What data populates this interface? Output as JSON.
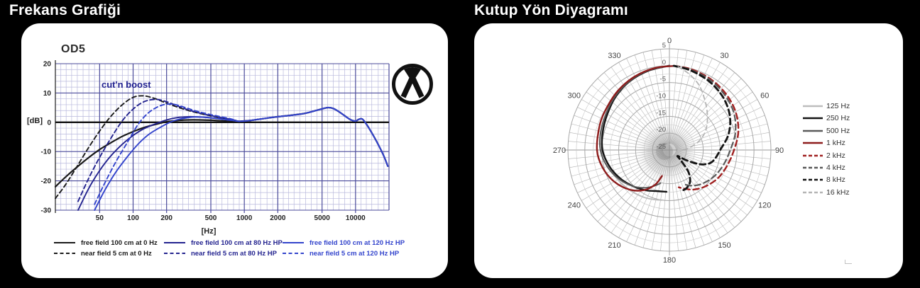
{
  "page": {
    "background": "#000000",
    "title_color": "#ffffff"
  },
  "panels": {
    "left": {
      "title": "Frekans Grafiği"
    },
    "right": {
      "title": "Kutup Yön Diyagramı"
    }
  },
  "icons": {
    "brand_logo": "austrian-audio-logo"
  },
  "chart_data": [
    {
      "type": "line",
      "title": "OD5",
      "annotation": "cut'n boost",
      "xlabel": "[Hz]",
      "ylabel": "[dB]",
      "x_scale": "log",
      "xlim": [
        20,
        20000
      ],
      "ylim": [
        -30,
        20
      ],
      "x_ticks": [
        "50",
        "100",
        "200",
        "500",
        "1000",
        "2000",
        "5000",
        "10000"
      ],
      "y_ticks": [
        "20",
        "10",
        "0",
        "-10",
        "-20",
        "-30"
      ],
      "grid": {
        "minor_color": "#b9b9dd",
        "major_color": "#4a4a9a",
        "zero_line_color": "#111111"
      },
      "legend_columns": [
        [
          0,
          1
        ],
        [
          2,
          3
        ],
        [
          4,
          5
        ]
      ],
      "series": [
        {
          "name": "free field 100 cm at 0 Hz",
          "color": "#1a1a1a",
          "dash": false,
          "width": 2.2,
          "merge_tail": true,
          "points": [
            [
              20,
              -22
            ],
            [
              25,
              -18.5
            ],
            [
              32,
              -15
            ],
            [
              40,
              -12
            ],
            [
              50,
              -9.3
            ],
            [
              63,
              -7
            ],
            [
              80,
              -4.8
            ],
            [
              100,
              -3.2
            ],
            [
              125,
              -1.8
            ],
            [
              160,
              -0.7
            ],
            [
              200,
              0.2
            ],
            [
              250,
              0.6
            ],
            [
              315,
              0.8
            ],
            [
              400,
              0.8
            ],
            [
              500,
              0.7
            ],
            [
              630,
              0.5
            ],
            [
              800,
              0.3
            ]
          ]
        },
        {
          "name": "near field 5 cm at 0 Hz",
          "color": "#1a1a1a",
          "dash": true,
          "width": 1.9,
          "merge_tail": true,
          "points": [
            [
              20,
              -26
            ],
            [
              25,
              -21
            ],
            [
              32,
              -14.5
            ],
            [
              40,
              -8.5
            ],
            [
              50,
              -3
            ],
            [
              63,
              2
            ],
            [
              80,
              6
            ],
            [
              100,
              8.5
            ],
            [
              125,
              9
            ],
            [
              160,
              8
            ],
            [
              200,
              6.5
            ],
            [
              250,
              5.2
            ],
            [
              315,
              4
            ],
            [
              400,
              3
            ],
            [
              500,
              2.2
            ],
            [
              630,
              1.5
            ],
            [
              800,
              0.8
            ]
          ]
        },
        {
          "name": "free field 100 cm at 80 Hz HP",
          "color": "#23238f",
          "dash": false,
          "width": 1.9,
          "merge_tail": true,
          "points": [
            [
              32,
              -30
            ],
            [
              40,
              -22.5
            ],
            [
              50,
              -16.5
            ],
            [
              63,
              -11.5
            ],
            [
              80,
              -7.5
            ],
            [
              100,
              -4.5
            ],
            [
              125,
              -2.2
            ],
            [
              160,
              -0.5
            ],
            [
              200,
              0.8
            ],
            [
              250,
              1.6
            ],
            [
              315,
              1.9
            ],
            [
              400,
              1.8
            ],
            [
              500,
              1.5
            ],
            [
              630,
              1.1
            ],
            [
              800,
              0.6
            ]
          ]
        },
        {
          "name": "near field 5 cm at 80 Hz HP",
          "color": "#23238f",
          "dash": true,
          "width": 1.9,
          "merge_tail": true,
          "points": [
            [
              32,
              -27
            ],
            [
              40,
              -19
            ],
            [
              50,
              -12
            ],
            [
              63,
              -5.5
            ],
            [
              80,
              0.5
            ],
            [
              100,
              4.5
            ],
            [
              125,
              7
            ],
            [
              160,
              7.8
            ],
            [
              200,
              7
            ],
            [
              250,
              5.6
            ],
            [
              315,
              4.2
            ],
            [
              400,
              3.1
            ],
            [
              500,
              2.3
            ],
            [
              630,
              1.5
            ],
            [
              800,
              0.8
            ]
          ]
        },
        {
          "name": "free field 100 cm at 120 Hz HP",
          "color": "#3344cc",
          "dash": false,
          "width": 1.9,
          "merge_tail": true,
          "points": [
            [
              45,
              -30
            ],
            [
              56,
              -23
            ],
            [
              70,
              -17
            ],
            [
              90,
              -11.5
            ],
            [
              112,
              -7.3
            ],
            [
              140,
              -4
            ],
            [
              180,
              -1.5
            ],
            [
              224,
              0.3
            ],
            [
              280,
              1.3
            ],
            [
              355,
              1.8
            ],
            [
              450,
              1.7
            ],
            [
              560,
              1.3
            ],
            [
              710,
              0.8
            ],
            [
              800,
              0.6
            ]
          ]
        },
        {
          "name": "near field 5 cm at 120 Hz HP",
          "color": "#3344cc",
          "dash": true,
          "width": 1.9,
          "merge_tail": true,
          "points": [
            [
              45,
              -28
            ],
            [
              56,
              -20.5
            ],
            [
              70,
              -13.5
            ],
            [
              90,
              -6.5
            ],
            [
              112,
              -0.5
            ],
            [
              140,
              3.5
            ],
            [
              180,
              5.8
            ],
            [
              224,
              6.2
            ],
            [
              280,
              5.3
            ],
            [
              355,
              4
            ],
            [
              450,
              3
            ],
            [
              560,
              2.2
            ],
            [
              710,
              1.4
            ],
            [
              800,
              0.9
            ]
          ]
        }
      ],
      "merged_tail": [
        [
          900,
          0.35
        ],
        [
          1120,
          0.6
        ],
        [
          1400,
          1.1
        ],
        [
          1800,
          1.7
        ],
        [
          2240,
          2.1
        ],
        [
          2800,
          2.5
        ],
        [
          3550,
          3.1
        ],
        [
          4500,
          4.1
        ],
        [
          5600,
          5
        ],
        [
          6300,
          4.7
        ],
        [
          7100,
          3.6
        ],
        [
          8000,
          2.2
        ],
        [
          9000,
          0.9
        ],
        [
          10000,
          0.4
        ],
        [
          10700,
          1
        ],
        [
          11500,
          1.1
        ],
        [
          12500,
          -0.6
        ],
        [
          14000,
          -3.6
        ],
        [
          16000,
          -7.6
        ],
        [
          18000,
          -11.6
        ],
        [
          19500,
          -15
        ]
      ]
    },
    {
      "type": "polar",
      "r_ticks": [
        "5",
        "0",
        "-5",
        "-10",
        "-15",
        "-20",
        "-25"
      ],
      "r_tick_values": [
        5,
        0,
        -5,
        -10,
        -15,
        -20,
        -25
      ],
      "r_range": [
        -25,
        5
      ],
      "r_step_minor": 2.5,
      "angle_ticks": [
        "0",
        "30",
        "60",
        "90",
        "120",
        "150",
        "180",
        "210",
        "240",
        "270",
        "300",
        "330"
      ],
      "grid": {
        "ring_color": "#a8a8a8",
        "minor_ring_color": "#c6c6c6",
        "spoke_color": "#b4b4b4",
        "axis_color": "#999999"
      },
      "series": [
        {
          "name": "125 Hz",
          "color": "#bdbdbd",
          "dash": false,
          "width": 2,
          "points_deg_db": [
            [
              0,
              0
            ],
            [
              -15,
              -0.5
            ],
            [
              -30,
              -1.2
            ],
            [
              -45,
              -2.2
            ],
            [
              -60,
              -3.4
            ],
            [
              -75,
              -4.4
            ],
            [
              -90,
              -5.4
            ],
            [
              -105,
              -6.4
            ],
            [
              -120,
              -7.4
            ],
            [
              -135,
              -8.3
            ],
            [
              -150,
              -9
            ],
            [
              -162,
              -9.6
            ],
            [
              -172,
              -10
            ]
          ]
        },
        {
          "name": "250 Hz",
          "color": "#141414",
          "dash": false,
          "width": 2.4,
          "points_deg_db": [
            [
              0,
              0
            ],
            [
              -15,
              -0.7
            ],
            [
              -30,
              -1.5
            ],
            [
              -45,
              -2.6
            ],
            [
              -60,
              -3.8
            ],
            [
              -75,
              -4.6
            ],
            [
              -90,
              -5.2
            ],
            [
              -105,
              -6.6
            ],
            [
              -120,
              -8.2
            ],
            [
              -135,
              -9.8
            ],
            [
              -150,
              -11.2
            ],
            [
              -162,
              -12.2
            ],
            [
              -176,
              -12.6
            ]
          ]
        },
        {
          "name": "500 Hz",
          "color": "#5a5a5a",
          "dash": false,
          "width": 2,
          "points_deg_db": [
            [
              0,
              0
            ],
            [
              -15,
              -0.6
            ],
            [
              -30,
              -1.4
            ],
            [
              -45,
              -2.4
            ],
            [
              -60,
              -3.4
            ],
            [
              -75,
              -4
            ],
            [
              -90,
              -4.6
            ],
            [
              -105,
              -6
            ],
            [
              -120,
              -7.8
            ],
            [
              -135,
              -9.8
            ],
            [
              -148,
              -11.8
            ],
            [
              -158,
              -13.6
            ],
            [
              -165,
              -14.8
            ]
          ]
        },
        {
          "name": "1 kHz",
          "color": "#8e1c1c",
          "dash": false,
          "width": 2.4,
          "points_deg_db": [
            [
              4,
              0
            ],
            [
              -10,
              -0.3
            ],
            [
              -25,
              -0.9
            ],
            [
              -40,
              -1.7
            ],
            [
              -55,
              -2.6
            ],
            [
              -70,
              -3.1
            ],
            [
              -90,
              -3.6
            ],
            [
              -105,
              -4.6
            ],
            [
              -120,
              -6.2
            ],
            [
              -135,
              -8.4
            ],
            [
              -148,
              -11
            ],
            [
              -158,
              -14
            ],
            [
              -164,
              -17
            ]
          ]
        },
        {
          "name": "2 kHz",
          "color": "#a02020",
          "dash": true,
          "width": 2.4,
          "points_deg_db": [
            [
              3,
              0
            ],
            [
              15,
              -0.2
            ],
            [
              30,
              -0.7
            ],
            [
              45,
              -1.4
            ],
            [
              60,
              -2.4
            ],
            [
              75,
              -3.9
            ],
            [
              90,
              -5.9
            ],
            [
              105,
              -7.3
            ],
            [
              120,
              -8.4
            ],
            [
              135,
              -9.8
            ],
            [
              148,
              -11.2
            ],
            [
              158,
              -12.6
            ],
            [
              166,
              -13.6
            ]
          ]
        },
        {
          "name": "4 kHz",
          "color": "#5a5a5a",
          "dash": true,
          "width": 2.2,
          "points_deg_db": [
            [
              3,
              0
            ],
            [
              15,
              -0.4
            ],
            [
              30,
              -1
            ],
            [
              45,
              -1.9
            ],
            [
              60,
              -3
            ],
            [
              75,
              -4.8
            ],
            [
              90,
              -7
            ],
            [
              105,
              -8.4
            ],
            [
              120,
              -9.6
            ],
            [
              135,
              -11
            ],
            [
              147,
              -12.4
            ],
            [
              156,
              -13.8
            ]
          ]
        },
        {
          "name": "8 kHz",
          "color": "#141414",
          "dash": true,
          "width": 2.8,
          "points_deg_db": [
            [
              3,
              0
            ],
            [
              15,
              -0.6
            ],
            [
              30,
              -1.5
            ],
            [
              45,
              -2.7
            ],
            [
              60,
              -4.4
            ],
            [
              75,
              -6.9
            ],
            [
              90,
              -10
            ],
            [
              100,
              -11.2
            ],
            [
              108,
              -12.4
            ],
            [
              115,
              -15
            ],
            [
              121,
              -19
            ],
            [
              126,
              -22
            ],
            [
              132,
              -20.5
            ],
            [
              139,
              -16.5
            ],
            [
              147,
              -13.8
            ],
            [
              156,
              -12.6
            ],
            [
              163,
              -12.4
            ]
          ]
        },
        {
          "name": "16 kHz",
          "color": "#b5b5b5",
          "dash": true,
          "width": 1.8,
          "points_deg_db": [
            [
              6,
              -0.2
            ],
            [
              15,
              -1.8
            ],
            [
              25,
              -4
            ],
            [
              35,
              -6.8
            ],
            [
              45,
              -9.2
            ],
            [
              55,
              -11.4
            ],
            [
              65,
              -13.6
            ],
            [
              75,
              -16.4
            ],
            [
              85,
              -19.6
            ],
            [
              93,
              -22.5
            ]
          ]
        }
      ]
    }
  ]
}
